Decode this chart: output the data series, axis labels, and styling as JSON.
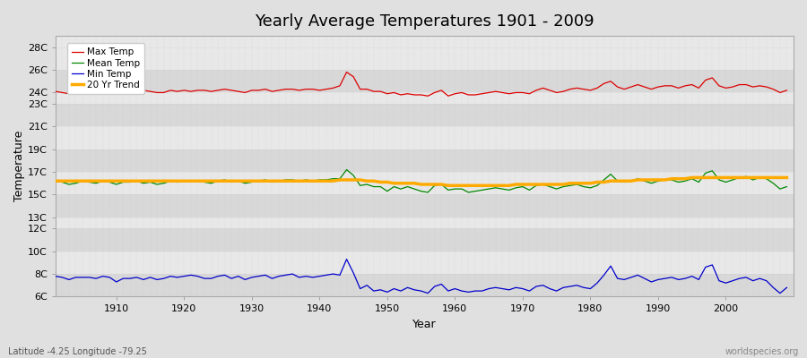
{
  "title": "Yearly Average Temperatures 1901 - 2009",
  "xlabel": "Year",
  "ylabel": "Temperature",
  "subtitle": "Latitude -4.25 Longitude -79.25",
  "watermark": "worldspecies.org",
  "years": [
    1901,
    1902,
    1903,
    1904,
    1905,
    1906,
    1907,
    1908,
    1909,
    1910,
    1911,
    1912,
    1913,
    1914,
    1915,
    1916,
    1917,
    1918,
    1919,
    1920,
    1921,
    1922,
    1923,
    1924,
    1925,
    1926,
    1927,
    1928,
    1929,
    1930,
    1931,
    1932,
    1933,
    1934,
    1935,
    1936,
    1937,
    1938,
    1939,
    1940,
    1941,
    1942,
    1943,
    1944,
    1945,
    1946,
    1947,
    1948,
    1949,
    1950,
    1951,
    1952,
    1953,
    1954,
    1955,
    1956,
    1957,
    1958,
    1959,
    1960,
    1961,
    1962,
    1963,
    1964,
    1965,
    1966,
    1967,
    1968,
    1969,
    1970,
    1971,
    1972,
    1973,
    1974,
    1975,
    1976,
    1977,
    1978,
    1979,
    1980,
    1981,
    1982,
    1983,
    1984,
    1985,
    1986,
    1987,
    1988,
    1989,
    1990,
    1991,
    1992,
    1993,
    1994,
    1995,
    1996,
    1997,
    1998,
    1999,
    2000,
    2001,
    2002,
    2003,
    2004,
    2005,
    2006,
    2007,
    2008,
    2009
  ],
  "max_temp": [
    24.1,
    24.0,
    23.9,
    24.0,
    24.2,
    24.1,
    24.0,
    24.1,
    24.0,
    24.1,
    23.9,
    24.0,
    24.1,
    24.2,
    24.1,
    24.0,
    24.0,
    24.2,
    24.1,
    24.2,
    24.1,
    24.2,
    24.2,
    24.1,
    24.2,
    24.3,
    24.2,
    24.1,
    24.0,
    24.2,
    24.2,
    24.3,
    24.1,
    24.2,
    24.3,
    24.3,
    24.2,
    24.3,
    24.3,
    24.2,
    24.3,
    24.4,
    24.6,
    25.8,
    25.4,
    24.3,
    24.3,
    24.1,
    24.1,
    23.9,
    24.0,
    23.8,
    23.9,
    23.8,
    23.8,
    23.7,
    24.0,
    24.2,
    23.7,
    23.9,
    24.0,
    23.8,
    23.8,
    23.9,
    24.0,
    24.1,
    24.0,
    23.9,
    24.0,
    24.0,
    23.9,
    24.2,
    24.4,
    24.2,
    24.0,
    24.1,
    24.3,
    24.4,
    24.3,
    24.2,
    24.4,
    24.8,
    25.0,
    24.5,
    24.3,
    24.5,
    24.7,
    24.5,
    24.3,
    24.5,
    24.6,
    24.6,
    24.4,
    24.6,
    24.7,
    24.4,
    25.1,
    25.3,
    24.6,
    24.4,
    24.5,
    24.7,
    24.7,
    24.5,
    24.6,
    24.5,
    24.3,
    24.0,
    24.2
  ],
  "mean_temp": [
    16.2,
    16.1,
    15.9,
    16.0,
    16.2,
    16.1,
    16.0,
    16.2,
    16.1,
    15.9,
    16.1,
    16.1,
    16.2,
    16.0,
    16.1,
    15.9,
    16.0,
    16.2,
    16.1,
    16.2,
    16.2,
    16.2,
    16.1,
    16.0,
    16.2,
    16.3,
    16.1,
    16.2,
    16.0,
    16.1,
    16.2,
    16.3,
    16.1,
    16.2,
    16.3,
    16.3,
    16.2,
    16.3,
    16.2,
    16.3,
    16.3,
    16.4,
    16.4,
    17.2,
    16.7,
    15.8,
    15.9,
    15.7,
    15.7,
    15.3,
    15.7,
    15.5,
    15.7,
    15.5,
    15.3,
    15.2,
    15.8,
    15.9,
    15.4,
    15.5,
    15.5,
    15.2,
    15.3,
    15.4,
    15.5,
    15.6,
    15.5,
    15.4,
    15.6,
    15.7,
    15.4,
    15.8,
    15.9,
    15.7,
    15.5,
    15.7,
    15.8,
    15.9,
    15.7,
    15.6,
    15.8,
    16.3,
    16.8,
    16.2,
    16.1,
    16.2,
    16.4,
    16.2,
    16.0,
    16.2,
    16.3,
    16.3,
    16.1,
    16.2,
    16.4,
    16.1,
    16.9,
    17.1,
    16.3,
    16.1,
    16.3,
    16.5,
    16.6,
    16.3,
    16.5,
    16.4,
    16.0,
    15.5,
    15.7
  ],
  "min_temp": [
    7.8,
    7.7,
    7.5,
    7.7,
    7.7,
    7.7,
    7.6,
    7.8,
    7.7,
    7.3,
    7.6,
    7.6,
    7.7,
    7.5,
    7.7,
    7.5,
    7.6,
    7.8,
    7.7,
    7.8,
    7.9,
    7.8,
    7.6,
    7.6,
    7.8,
    7.9,
    7.6,
    7.8,
    7.5,
    7.7,
    7.8,
    7.9,
    7.6,
    7.8,
    7.9,
    8.0,
    7.7,
    7.8,
    7.7,
    7.8,
    7.9,
    8.0,
    7.9,
    9.3,
    8.1,
    6.7,
    7.0,
    6.5,
    6.6,
    6.4,
    6.7,
    6.5,
    6.8,
    6.6,
    6.5,
    6.3,
    6.9,
    7.1,
    6.5,
    6.7,
    6.5,
    6.4,
    6.5,
    6.5,
    6.7,
    6.8,
    6.7,
    6.6,
    6.8,
    6.7,
    6.5,
    6.9,
    7.0,
    6.7,
    6.5,
    6.8,
    6.9,
    7.0,
    6.8,
    6.7,
    7.2,
    7.9,
    8.7,
    7.6,
    7.5,
    7.7,
    7.9,
    7.6,
    7.3,
    7.5,
    7.6,
    7.7,
    7.5,
    7.6,
    7.8,
    7.5,
    8.6,
    8.8,
    7.4,
    7.2,
    7.4,
    7.6,
    7.7,
    7.4,
    7.6,
    7.4,
    6.8,
    6.3,
    6.8
  ],
  "trend_values": [
    16.2,
    16.2,
    16.2,
    16.2,
    16.2,
    16.2,
    16.2,
    16.2,
    16.2,
    16.2,
    16.2,
    16.2,
    16.2,
    16.2,
    16.2,
    16.2,
    16.2,
    16.2,
    16.2,
    16.2,
    16.2,
    16.2,
    16.2,
    16.2,
    16.2,
    16.2,
    16.2,
    16.2,
    16.2,
    16.2,
    16.2,
    16.2,
    16.2,
    16.2,
    16.2,
    16.2,
    16.2,
    16.2,
    16.2,
    16.2,
    16.2,
    16.2,
    16.3,
    16.3,
    16.3,
    16.3,
    16.2,
    16.2,
    16.1,
    16.1,
    16.0,
    16.0,
    16.0,
    16.0,
    15.9,
    15.9,
    15.9,
    15.9,
    15.8,
    15.8,
    15.8,
    15.8,
    15.8,
    15.8,
    15.8,
    15.8,
    15.8,
    15.8,
    15.9,
    15.9,
    15.9,
    15.9,
    15.9,
    15.9,
    15.9,
    15.9,
    16.0,
    16.0,
    16.0,
    16.0,
    16.1,
    16.1,
    16.2,
    16.2,
    16.2,
    16.2,
    16.3,
    16.3,
    16.3,
    16.3,
    16.3,
    16.4,
    16.4,
    16.4,
    16.5,
    16.5,
    16.5,
    16.5,
    16.5,
    16.5,
    16.5,
    16.5,
    16.5,
    16.5,
    16.5,
    16.5,
    16.5,
    16.5,
    16.5
  ],
  "max_color": "#dd0000",
  "mean_color": "#008800",
  "min_color": "#0000cc",
  "trend_color": "#ffaa00",
  "bg_color": "#e0e0e0",
  "band_light": "#e8e8e8",
  "band_dark": "#d8d8d8",
  "grid_color": "#cccccc",
  "ylim_min": 6,
  "ylim_max": 29,
  "ytick_labels": [
    "6C",
    "8C",
    "10C",
    "12C",
    "13C",
    "15C",
    "17C",
    "19C",
    "21C",
    "23C",
    "24C",
    "26C",
    "28C"
  ],
  "ytick_values": [
    6,
    8,
    10,
    12,
    13,
    15,
    17,
    19,
    21,
    23,
    24,
    26,
    28
  ],
  "xlim_min": 1901,
  "xlim_max": 2010
}
